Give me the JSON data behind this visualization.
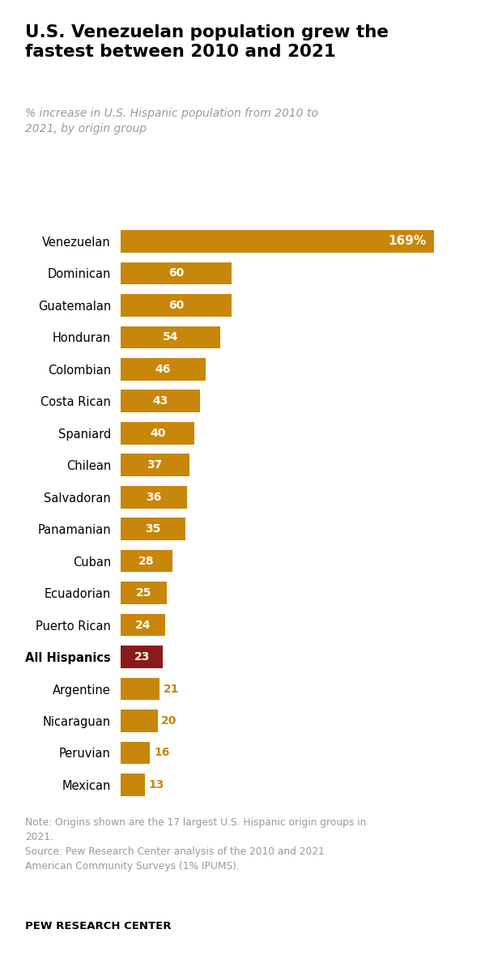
{
  "title": "U.S. Venezuelan population grew the\nfastest between 2010 and 2021",
  "subtitle": "% increase in U.S. Hispanic population from 2010 to\n2021, by origin group",
  "note": "Note: Origins shown are the 17 largest U.S. Hispanic origin groups in\n2021.\nSource: Pew Research Center analysis of the 2010 and 2021\nAmerican Community Surveys (1% IPUMS).",
  "source_label": "PEW RESEARCH CENTER",
  "categories": [
    "Venezuelan",
    "Dominican",
    "Guatemalan",
    "Honduran",
    "Colombian",
    "Costa Rican",
    "Spaniard",
    "Chilean",
    "Salvadoran",
    "Panamanian",
    "Cuban",
    "Ecuadorian",
    "Puerto Rican",
    "All Hispanics",
    "Argentine",
    "Nicaraguan",
    "Peruvian",
    "Mexican"
  ],
  "values": [
    169,
    60,
    60,
    54,
    46,
    43,
    40,
    37,
    36,
    35,
    28,
    25,
    24,
    23,
    21,
    20,
    16,
    13
  ],
  "bar_color_default": "#C8860A",
  "bar_color_highlight": "#8B1A1A",
  "highlight_index": 13,
  "label_color_outside": "#C8860A",
  "outside_threshold": 22,
  "background_color": "#ffffff",
  "title_color": "#000000",
  "subtitle_color": "#999999",
  "note_color": "#999999",
  "source_color": "#000000",
  "xlim": 195
}
